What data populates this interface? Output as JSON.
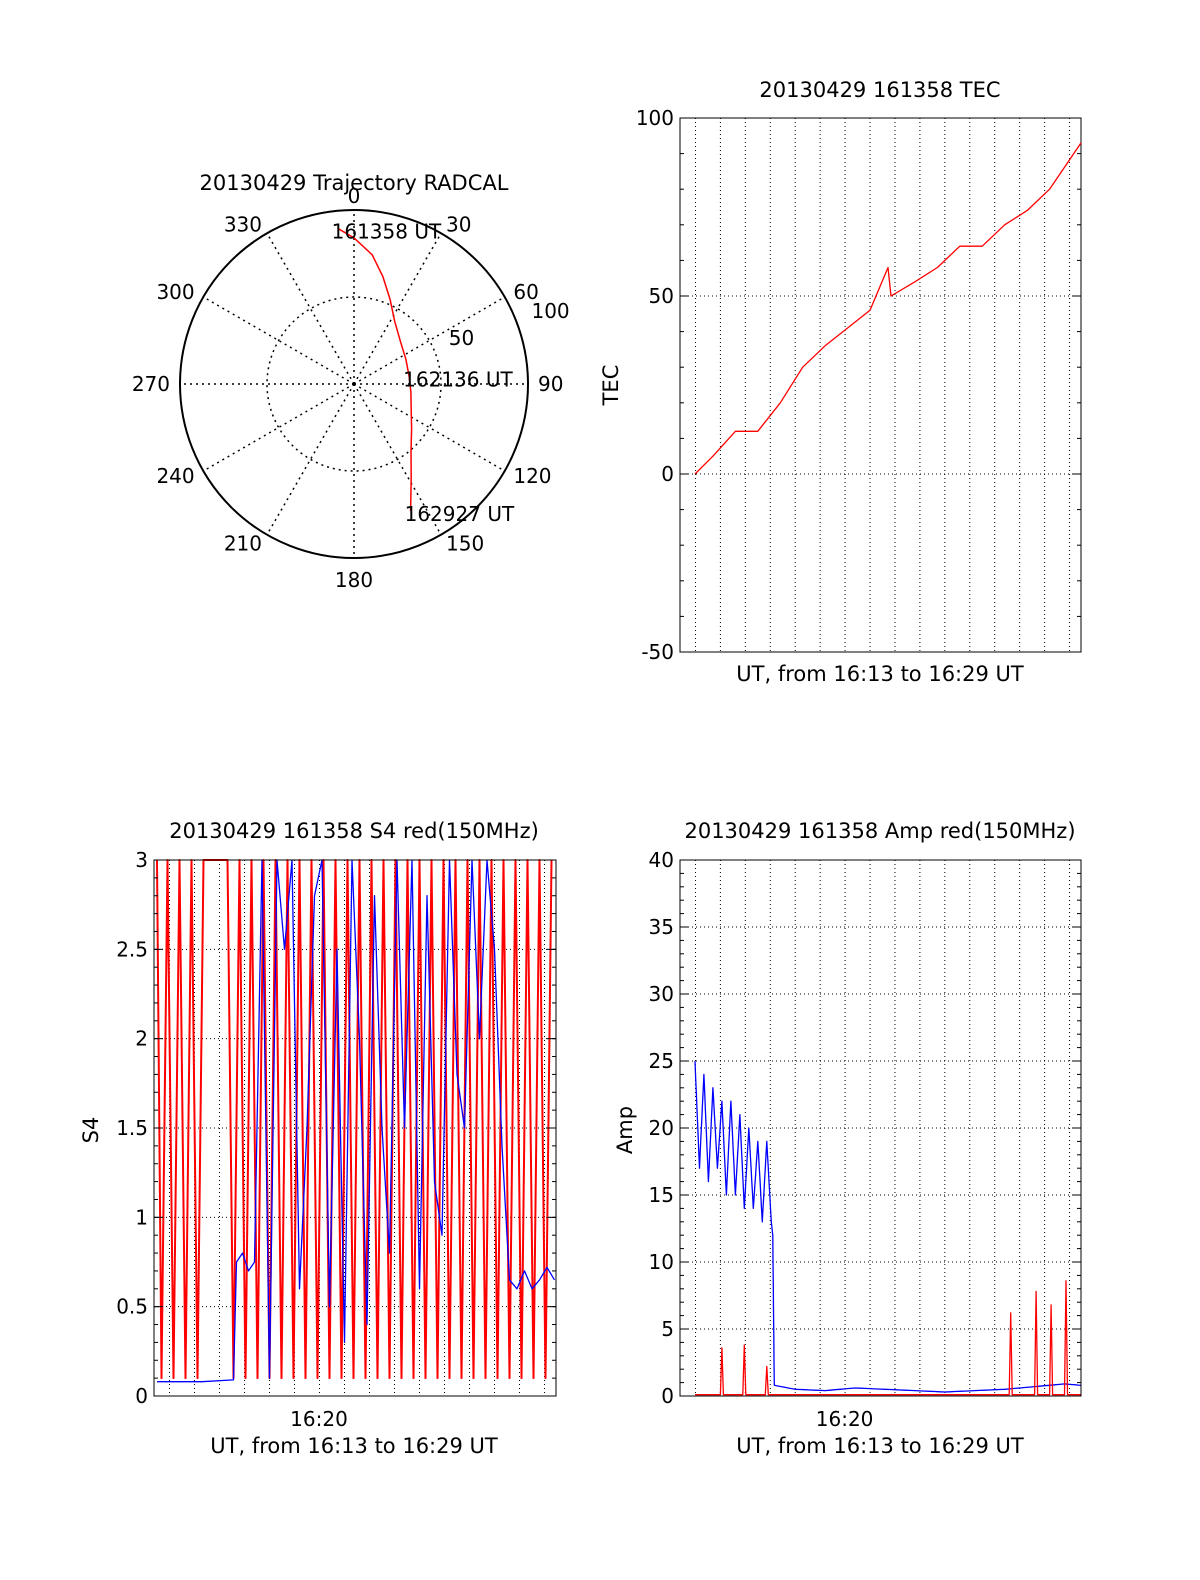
{
  "colors": {
    "red": "#ff0000",
    "blue": "#0000ff",
    "grid": "#000000",
    "axis": "#000000"
  },
  "chart_data": [
    {
      "type": "polar",
      "title": "20130429 Trajectory RADCAL",
      "angle_ticks": [
        "0",
        "30",
        "60",
        "90",
        "120",
        "150",
        "180",
        "210",
        "240",
        "270",
        "300",
        "330"
      ],
      "angle_values": [
        0,
        30,
        60,
        90,
        120,
        150,
        180,
        210,
        240,
        270,
        300,
        330
      ],
      "radius_ticks": [
        "50",
        "100"
      ],
      "radius_values": [
        50,
        100
      ],
      "rlim": [
        0,
        100
      ],
      "grid": true,
      "series": [
        {
          "color": "red",
          "points": [
            {
              "az": 354,
              "r": 90
            },
            {
              "az": 0,
              "r": 84
            },
            {
              "az": 8,
              "r": 75
            },
            {
              "az": 15,
              "r": 64
            },
            {
              "az": 23,
              "r": 53
            },
            {
              "az": 33,
              "r": 43
            },
            {
              "az": 48,
              "r": 36
            },
            {
              "az": 65,
              "r": 33
            },
            {
              "az": 82,
              "r": 32
            },
            {
              "az": 98,
              "r": 33
            },
            {
              "az": 114,
              "r": 36
            },
            {
              "az": 128,
              "r": 42
            },
            {
              "az": 140,
              "r": 51
            },
            {
              "az": 148,
              "r": 62
            },
            {
              "az": 153,
              "r": 72
            },
            {
              "az": 156,
              "r": 80
            }
          ]
        }
      ],
      "annotations": [
        {
          "text": "161358 UT",
          "az": 354,
          "r": 90
        },
        {
          "text": "162136 UT",
          "az": 82,
          "r": 32
        },
        {
          "text": "162927 UT",
          "az": 156,
          "r": 80
        }
      ]
    },
    {
      "type": "line",
      "title": "20130429 161358 TEC",
      "xlabel": "UT, from 16:13 to 16:29 UT",
      "ylabel": "TEC",
      "xlim": [
        16.223,
        16.491
      ],
      "ylim": [
        -50,
        100
      ],
      "yticks": [
        "-50",
        "0",
        "50",
        "100"
      ],
      "ytick_values": [
        -50,
        0,
        50,
        100
      ],
      "grid": true,
      "series": [
        {
          "color": "red",
          "x": [
            16.233,
            16.245,
            16.26,
            16.275,
            16.29,
            16.305,
            16.32,
            16.335,
            16.35,
            16.362,
            16.364,
            16.38,
            16.395,
            16.41,
            16.425,
            16.44,
            16.455,
            16.47,
            16.491
          ],
          "y": [
            0,
            5,
            12,
            12,
            20,
            30,
            36,
            41,
            46,
            58,
            50,
            54,
            58,
            64,
            64,
            70,
            74,
            80,
            93
          ]
        }
      ]
    },
    {
      "type": "line",
      "title": "20130429 161358 S4 red(150MHz)",
      "xlabel": "UT, from 16:13 to 16:29 UT",
      "ylabel": "S4",
      "xlim": [
        16.223,
        16.491
      ],
      "ylim": [
        0,
        3
      ],
      "yticks": [
        "0",
        "0.5",
        "1",
        "1.5",
        "2",
        "2.5",
        "3"
      ],
      "ytick_values": [
        0,
        0.5,
        1,
        1.5,
        2,
        2.5,
        3
      ],
      "xticks": [
        "16:20"
      ],
      "xtick_values": [
        16.333
      ],
      "grid": true,
      "series": [
        {
          "color": "red",
          "x": [
            16.225,
            16.228,
            16.232,
            16.236,
            16.24,
            16.244,
            16.248,
            16.252,
            16.256,
            16.26,
            16.264,
            16.268,
            16.272,
            16.276,
            16.28,
            16.284,
            16.288,
            16.292,
            16.296,
            16.3,
            16.304,
            16.308,
            16.312,
            16.316,
            16.32,
            16.324,
            16.328,
            16.332,
            16.336,
            16.34,
            16.344,
            16.348,
            16.352,
            16.356,
            16.36,
            16.364,
            16.368,
            16.372,
            16.376,
            16.38,
            16.384,
            16.388,
            16.392,
            16.396,
            16.4,
            16.404,
            16.408,
            16.412,
            16.416,
            16.42,
            16.424,
            16.428,
            16.432,
            16.436,
            16.44,
            16.444,
            16.448,
            16.452,
            16.456,
            16.46,
            16.464,
            16.468,
            16.472,
            16.476,
            16.48,
            16.484,
            16.488
          ],
          "y": [
            3,
            0.1,
            3,
            0.1,
            3,
            0.1,
            3,
            0.1,
            3,
            3,
            3,
            3,
            3,
            0.1,
            3,
            0.1,
            3,
            0.1,
            3,
            0.1,
            3,
            0.1,
            3,
            0.1,
            3,
            0.1,
            3,
            0.1,
            3,
            0.1,
            3,
            0.1,
            3,
            0.1,
            3,
            0.1,
            3,
            0.1,
            3,
            0.1,
            3,
            0.1,
            3,
            0.1,
            3,
            0.1,
            3,
            0.1,
            3,
            0.1,
            3,
            0.1,
            3,
            0.1,
            3,
            0.1,
            3,
            0.1,
            3,
            0.1,
            3,
            0.1,
            3,
            0.1,
            3,
            0.1,
            3
          ]
        },
        {
          "color": "blue",
          "x": [
            16.225,
            16.24,
            16.255,
            16.276,
            16.278,
            16.282,
            16.286,
            16.29,
            16.295,
            16.3,
            16.305,
            16.31,
            16.315,
            16.32,
            16.325,
            16.33,
            16.335,
            16.34,
            16.345,
            16.35,
            16.355,
            16.36,
            16.365,
            16.37,
            16.375,
            16.38,
            16.385,
            16.39,
            16.395,
            16.4,
            16.405,
            16.41,
            16.415,
            16.42,
            16.425,
            16.43,
            16.435,
            16.44,
            16.445,
            16.45,
            16.455,
            16.46,
            16.465,
            16.47,
            16.475,
            16.48,
            16.485,
            16.49
          ],
          "y": [
            0.08,
            0.08,
            0.08,
            0.09,
            0.75,
            0.8,
            0.7,
            0.75,
            3,
            0.1,
            3,
            2.5,
            3,
            0.6,
            1.5,
            2.8,
            3,
            0.5,
            2.5,
            0.3,
            3,
            2.0,
            0.4,
            2.8,
            1.5,
            0.8,
            3,
            1.5,
            3,
            0.6,
            2.8,
            1.2,
            0.9,
            3,
            1.8,
            1.5,
            3,
            2.0,
            3,
            2.5,
            1.4,
            0.65,
            0.6,
            0.7,
            0.6,
            0.65,
            0.72,
            0.65
          ]
        }
      ]
    },
    {
      "type": "line",
      "title": "20130429 161358 Amp red(150MHz)",
      "xlabel": "UT, from 16:13 to 16:29 UT",
      "ylabel": "Amp",
      "xlim": [
        16.223,
        16.491
      ],
      "ylim": [
        0,
        40
      ],
      "yticks": [
        "0",
        "5",
        "10",
        "15",
        "20",
        "25",
        "30",
        "35",
        "40"
      ],
      "ytick_values": [
        0,
        5,
        10,
        15,
        20,
        25,
        30,
        35,
        40
      ],
      "xticks": [
        "16:20"
      ],
      "xtick_values": [
        16.333
      ],
      "grid": true,
      "series": [
        {
          "color": "blue",
          "x": [
            16.233,
            16.236,
            16.239,
            16.242,
            16.245,
            16.248,
            16.251,
            16.254,
            16.257,
            16.26,
            16.263,
            16.266,
            16.269,
            16.272,
            16.275,
            16.278,
            16.281,
            16.284,
            16.285,
            16.286,
            16.3,
            16.32,
            16.34,
            16.36,
            16.38,
            16.4,
            16.42,
            16.44,
            16.46,
            16.48,
            16.491
          ],
          "y": [
            25,
            17,
            24,
            16,
            23,
            17,
            22,
            15,
            22,
            15,
            21,
            14,
            20,
            14,
            19,
            13,
            19,
            13,
            12,
            0.8,
            0.5,
            0.4,
            0.6,
            0.5,
            0.4,
            0.3,
            0.4,
            0.5,
            0.7,
            0.9,
            0.8
          ]
        },
        {
          "color": "red",
          "x": [
            16.233,
            16.25,
            16.251,
            16.252,
            16.265,
            16.266,
            16.267,
            16.28,
            16.281,
            16.282,
            16.286,
            16.443,
            16.444,
            16.445,
            16.46,
            16.461,
            16.462,
            16.47,
            16.471,
            16.472,
            16.48,
            16.481,
            16.482,
            16.491
          ],
          "y": [
            0.1,
            0.1,
            3.6,
            0.1,
            0.1,
            3.8,
            0.1,
            0.1,
            2.2,
            0.1,
            0.1,
            0.1,
            6.2,
            0.1,
            0.1,
            7.8,
            0.1,
            0.1,
            6.8,
            0.1,
            0.1,
            8.6,
            0.1,
            0.1
          ]
        }
      ]
    }
  ]
}
